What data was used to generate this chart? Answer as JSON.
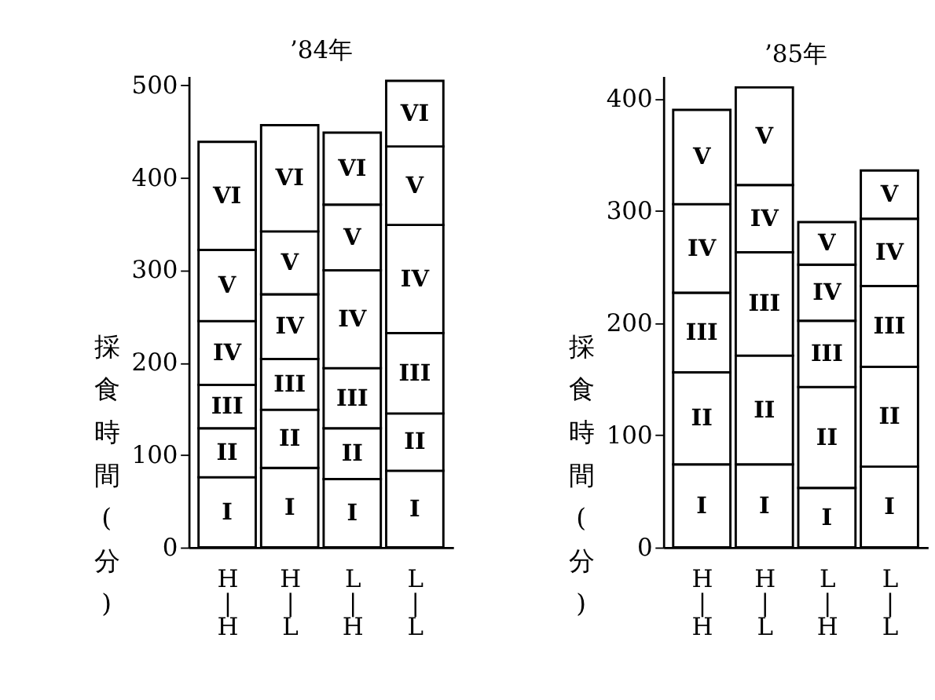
{
  "chart_data": [
    {
      "type": "bar",
      "stacked": true,
      "title": "’84年",
      "ylabel": "採食時間(分)",
      "categories": [
        "H\n|\nH",
        "H\n|\nL",
        "L\n|\nH",
        "L\n|\nL"
      ],
      "ylim": [
        0,
        510
      ],
      "yticks": [
        0,
        100,
        200,
        300,
        400,
        500
      ],
      "grid": false,
      "legend": false,
      "series": [
        {
          "name": "I",
          "color": "#ffffff",
          "values": [
            76,
            86,
            74,
            83
          ]
        },
        {
          "name": "II",
          "color": "#ffffff",
          "values": [
            53,
            63,
            55,
            62
          ]
        },
        {
          "name": "III",
          "color": "#ffffff",
          "values": [
            47,
            55,
            65,
            87
          ]
        },
        {
          "name": "IV",
          "color": "#ffffff",
          "values": [
            69,
            70,
            106,
            117
          ]
        },
        {
          "name": "V",
          "color": "#ffffff",
          "values": [
            77,
            68,
            71,
            85
          ]
        },
        {
          "name": "VI",
          "color": "#ffffff",
          "values": [
            117,
            115,
            78,
            71
          ]
        }
      ]
    },
    {
      "type": "bar",
      "stacked": true,
      "title": "’85年",
      "ylabel": "採食時間(分)",
      "categories": [
        "H\n|\nH",
        "H\n|\nL",
        "L\n|\nH",
        "L\n|\nL"
      ],
      "ylim": [
        0,
        420
      ],
      "yticks": [
        0,
        100,
        200,
        300,
        400
      ],
      "grid": false,
      "legend": false,
      "series": [
        {
          "name": "I",
          "color": "#ffffff",
          "values": [
            74,
            74,
            53,
            72
          ]
        },
        {
          "name": "II",
          "color": "#ffffff",
          "values": [
            82,
            97,
            90,
            89
          ]
        },
        {
          "name": "III",
          "color": "#ffffff",
          "values": [
            71,
            92,
            59,
            72
          ]
        },
        {
          "name": "IV",
          "color": "#ffffff",
          "values": [
            79,
            60,
            50,
            60
          ]
        },
        {
          "name": "V",
          "color": "#ffffff",
          "values": [
            84,
            87,
            38,
            43
          ]
        }
      ]
    }
  ]
}
